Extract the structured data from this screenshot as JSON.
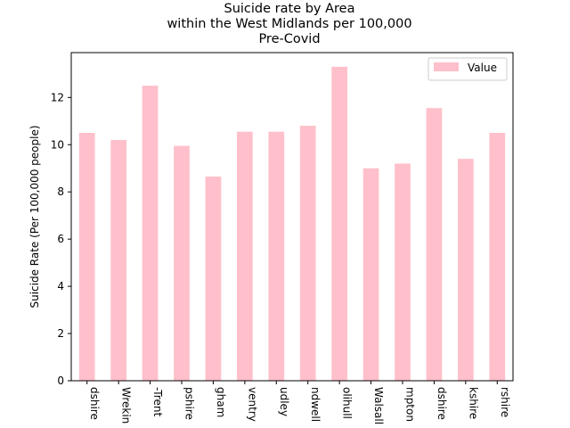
{
  "chart_data": {
    "type": "bar",
    "title_lines": [
      "Suicide rate by Area",
      "within the West Midlands per 100,000",
      "Pre-Covid"
    ],
    "xlabel": "",
    "ylabel": "Suicide Rate (Per 100,000 people)",
    "categories": [
      "dshire",
      "Wrekin",
      "-Trent",
      "pshire",
      "gham",
      "ventry",
      "udley",
      "ndwell",
      "olihull",
      "Walsall",
      "mpton",
      "dshire",
      "kshire",
      "rshire"
    ],
    "series": [
      {
        "name": "Value",
        "color": "#ffc0cb",
        "values": [
          10.5,
          10.2,
          12.5,
          9.95,
          8.65,
          10.55,
          10.55,
          10.8,
          13.3,
          9.0,
          9.2,
          11.55,
          9.4,
          10.5
        ]
      }
    ],
    "ylim": [
      0,
      13.9
    ],
    "yticks": [
      0,
      2,
      4,
      6,
      8,
      10,
      12
    ],
    "grid": false,
    "legend_position": "top-right"
  }
}
